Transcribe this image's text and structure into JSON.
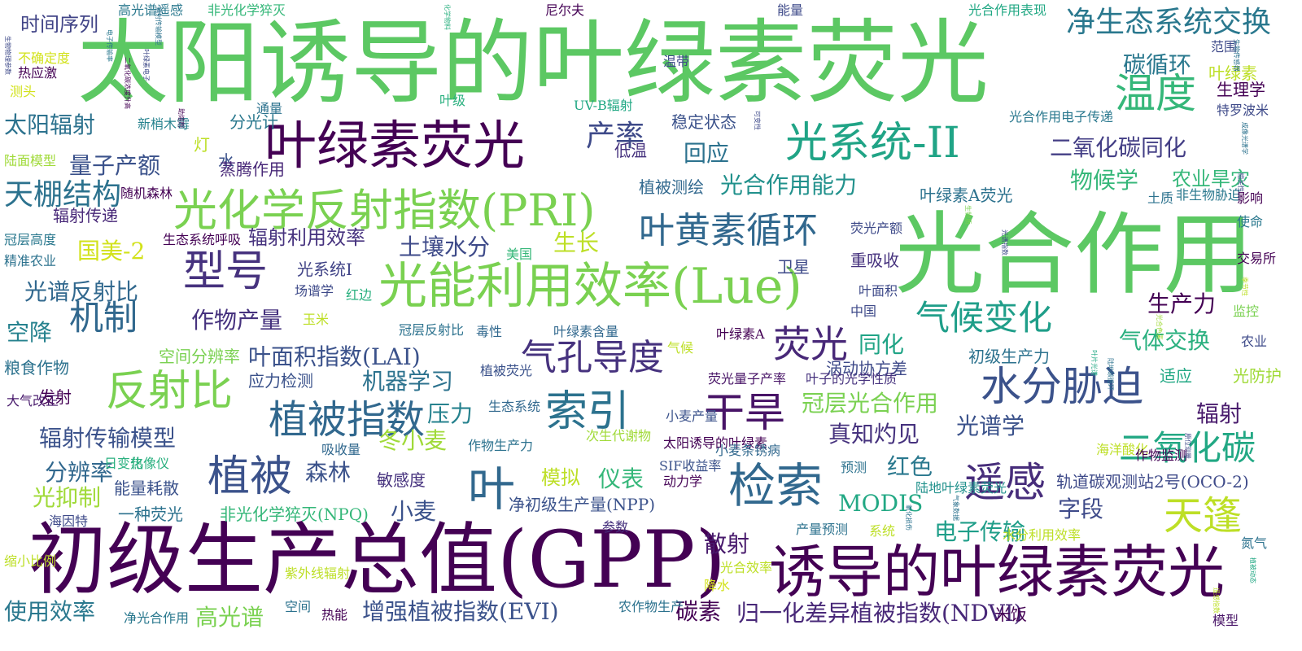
{
  "words": [
    {
      "text": "太阳诱导的叶绿素荧光",
      "color": "#5cc863"
    },
    {
      "text": "光合作用",
      "color": "#5cc863"
    },
    {
      "text": "初级生产总值(GPP)",
      "color": "#440154"
    },
    {
      "text": "诱导的叶绿素荧光",
      "color": "#440154"
    },
    {
      "text": "叶绿素荧光",
      "color": "#440154"
    },
    {
      "text": "光能利用效率(Lue)",
      "color": "#7ad151"
    },
    {
      "text": "光化学反射指数(PRI)",
      "color": "#7ad151"
    },
    {
      "text": "检索",
      "color": "#31688e"
    },
    {
      "text": "叶",
      "color": "#31688e"
    },
    {
      "text": "温度",
      "color": "#35b779"
    },
    {
      "text": "光系统-II",
      "color": "#20a486"
    },
    {
      "text": "水分胁迫",
      "color": "#3b528b"
    },
    {
      "text": "干旱",
      "color": "#481467"
    },
    {
      "text": "反射比",
      "color": "#7ad151"
    },
    {
      "text": "型号",
      "color": "#46327e"
    },
    {
      "text": "索引",
      "color": "#2c728e"
    },
    {
      "text": "植被",
      "color": "#3b528b"
    },
    {
      "text": "遥感",
      "color": "#472d7b"
    },
    {
      "text": "植被指数",
      "color": "#31688e"
    },
    {
      "text": "叶黄素循环",
      "color": "#31688e"
    },
    {
      "text": "气孔导度",
      "color": "#46327e"
    },
    {
      "text": "荧光",
      "color": "#482878"
    },
    {
      "text": "机制",
      "color": "#31688e"
    },
    {
      "text": "天篷",
      "color": "#bddf26"
    },
    {
      "text": "二氧化碳",
      "color": "#22a884"
    },
    {
      "text": "气候变化",
      "color": "#1f9e89"
    },
    {
      "text": "净生态系统交换",
      "color": "#2a788e"
    },
    {
      "text": "碳循环",
      "color": "#2a788e"
    },
    {
      "text": "产率",
      "color": "#3e4a89"
    },
    {
      "text": "二氧化碳同化",
      "color": "#433e85"
    },
    {
      "text": "物候学",
      "color": "#35b779"
    },
    {
      "text": "农业旱灾",
      "color": "#35b779"
    },
    {
      "text": "天棚结构",
      "color": "#2c728e"
    },
    {
      "text": "量子产额",
      "color": "#3b528b"
    },
    {
      "text": "太阳辐射",
      "color": "#2c728e"
    },
    {
      "text": "时间序列",
      "color": "#414487"
    },
    {
      "text": "土壤水分",
      "color": "#3e4a89"
    },
    {
      "text": "光合作用能力",
      "color": "#21918c"
    },
    {
      "text": "叶面积指数(LAI)",
      "color": "#3b528b"
    },
    {
      "text": "作物产量",
      "color": "#46327e"
    },
    {
      "text": "光谱反射比",
      "color": "#31688e"
    },
    {
      "text": "生长",
      "color": "#bddf26"
    },
    {
      "text": "国美-2",
      "color": "#d2e21b"
    },
    {
      "text": "空降",
      "color": "#26828e"
    },
    {
      "text": "辐射传输模型",
      "color": "#3b528b"
    },
    {
      "text": "辐射利用效率",
      "color": "#46327e"
    },
    {
      "text": "冠层光合作用",
      "color": "#7ad151"
    },
    {
      "text": "光谱学",
      "color": "#3b528b"
    },
    {
      "text": "生产力",
      "color": "#440154"
    },
    {
      "text": "气体交换",
      "color": "#2ab07f"
    },
    {
      "text": "辐射",
      "color": "#481a6c"
    },
    {
      "text": "字段",
      "color": "#3e4a89"
    },
    {
      "text": "真知灼见",
      "color": "#46327e"
    },
    {
      "text": "机器学习",
      "color": "#2c728e"
    },
    {
      "text": "同化",
      "color": "#20a486"
    },
    {
      "text": "电子传输",
      "color": "#1f9e89"
    },
    {
      "text": "使用效率",
      "color": "#2a788e"
    },
    {
      "text": "增强植被指数(EVI)",
      "color": "#3b528b"
    },
    {
      "text": "归一化差异植被指数(NDVI)",
      "color": "#482878"
    },
    {
      "text": "碳素",
      "color": "#440154"
    },
    {
      "text": "高光谱",
      "color": "#7ad151"
    },
    {
      "text": "散射",
      "color": "#481a6c"
    },
    {
      "text": "森林",
      "color": "#3b528b"
    },
    {
      "text": "冬小麦",
      "color": "#a0da39"
    },
    {
      "text": "小麦",
      "color": "#3b528b"
    },
    {
      "text": "红色",
      "color": "#2a788e"
    },
    {
      "text": "分辨率",
      "color": "#31688e"
    },
    {
      "text": "光抑制",
      "color": "#a0da39"
    },
    {
      "text": "仪表",
      "color": "#35b779"
    },
    {
      "text": "模拟",
      "color": "#bddf26"
    },
    {
      "text": "MODIS",
      "color": "#22a884"
    },
    {
      "text": "轨道碳观测站2号(OCO-2)",
      "color": "#3e4a89"
    },
    {
      "text": "净初级生产量(NPP)",
      "color": "#3b528b"
    },
    {
      "text": "压力",
      "color": "#26828e"
    },
    {
      "text": "涡动协方差",
      "color": "#3e4a89"
    },
    {
      "text": "初级生产力",
      "color": "#2c728e"
    },
    {
      "text": "能量耗散",
      "color": "#3b528b"
    },
    {
      "text": "一种荧光",
      "color": "#2c728e"
    },
    {
      "text": "非光化学猝灭(NPQ)",
      "color": "#35b779"
    },
    {
      "text": "敏感度",
      "color": "#46327e"
    },
    {
      "text": "叶绿素A荧光",
      "color": "#2c728e"
    },
    {
      "text": "植被测绘",
      "color": "#31688e"
    },
    {
      "text": "回应",
      "color": "#2c728e"
    },
    {
      "text": "稳定状态",
      "color": "#3b528b"
    },
    {
      "text": "低温",
      "color": "#46327e"
    },
    {
      "text": "光系统I",
      "color": "#414487"
    },
    {
      "text": "卫星",
      "color": "#3e4a89"
    },
    {
      "text": "重吸收",
      "color": "#46327e"
    },
    {
      "text": "冠层高度",
      "color": "#2a788e"
    },
    {
      "text": "精准农业",
      "color": "#2c728e"
    },
    {
      "text": "生态系统呼吸",
      "color": "#440154"
    },
    {
      "text": "辐射传递",
      "color": "#482878"
    },
    {
      "text": "随机森林",
      "color": "#440154"
    },
    {
      "text": "应力检测",
      "color": "#3b528b"
    },
    {
      "text": "粮食作物",
      "color": "#2c728e"
    },
    {
      "text": "发射",
      "color": "#440154"
    },
    {
      "text": "叶绿素",
      "color": "#bddf26"
    },
    {
      "text": "生理学",
      "color": "#440154"
    },
    {
      "text": "光合作用电子传递",
      "color": "#2a788e"
    },
    {
      "text": "UV-B辐射",
      "color": "#22a884"
    },
    {
      "text": "陆面模型",
      "color": "#a0da39"
    },
    {
      "text": "灯",
      "color": "#bddf26"
    },
    {
      "text": "水",
      "color": "#3b528b"
    },
    {
      "text": "分光计",
      "color": "#2a788e"
    },
    {
      "text": "新梢木霉",
      "color": "#26828e"
    },
    {
      "text": "蒸腾作用",
      "color": "#482878"
    },
    {
      "text": "测头",
      "color": "#d2e21b"
    },
    {
      "text": "不确定度",
      "color": "#d2e21b"
    },
    {
      "text": "热应激",
      "color": "#440154"
    },
    {
      "text": "能量",
      "color": "#3e4a89"
    },
    {
      "text": "高光谱遥感",
      "color": "#2a788e"
    },
    {
      "text": "非光化学猝灭",
      "color": "#35b779"
    },
    {
      "text": "尼尔夫",
      "color": "#440154"
    },
    {
      "text": "光合作用表现",
      "color": "#22a884"
    },
    {
      "text": "范围",
      "color": "#3e4a89"
    },
    {
      "text": "温带",
      "color": "#3e4a89"
    },
    {
      "text": "叶级",
      "color": "#2ab07f"
    },
    {
      "text": "通量",
      "color": "#2c728e"
    },
    {
      "text": "特罗波米",
      "color": "#3e4a89"
    },
    {
      "text": "非生物胁迫",
      "color": "#2a788e"
    },
    {
      "text": "土质",
      "color": "#2c728e"
    },
    {
      "text": "影响",
      "color": "#440154"
    },
    {
      "text": "使命",
      "color": "#2a788e"
    },
    {
      "text": "交易所",
      "color": "#440154"
    },
    {
      "text": "荧光产额",
      "color": "#3e4a89"
    },
    {
      "text": "中国",
      "color": "#3e4a89"
    },
    {
      "text": "叶面积",
      "color": "#3e4a89"
    },
    {
      "text": "监控",
      "color": "#7ad151"
    },
    {
      "text": "农业",
      "color": "#3e4a89"
    },
    {
      "text": "适应",
      "color": "#22a884"
    },
    {
      "text": "光防护",
      "color": "#a0da39"
    },
    {
      "text": "空间分辨率",
      "color": "#7ad151"
    },
    {
      "text": "气候",
      "color": "#bddf26"
    },
    {
      "text": "叶绿素A",
      "color": "#440154"
    },
    {
      "text": "植被荧光",
      "color": "#3b528b"
    },
    {
      "text": "荧光量子产率",
      "color": "#481467"
    },
    {
      "text": "叶子的光学性质",
      "color": "#46327e"
    },
    {
      "text": "叶绿素含量",
      "color": "#31688e"
    },
    {
      "text": "毒性",
      "color": "#31688e"
    },
    {
      "text": "冠层反射比",
      "color": "#2c728e"
    },
    {
      "text": "玉米",
      "color": "#bddf26"
    },
    {
      "text": "场谱学",
      "color": "#3e4a89"
    },
    {
      "text": "红边",
      "color": "#2ab07f"
    },
    {
      "text": "美国",
      "color": "#35b779"
    },
    {
      "text": "大气改正",
      "color": "#481a6c"
    },
    {
      "text": "生态系统",
      "color": "#31688e"
    },
    {
      "text": "小麦产量",
      "color": "#3b528b"
    },
    {
      "text": "太阳诱导的叶绿素",
      "color": "#440154"
    },
    {
      "text": "小麦条锈病",
      "color": "#31688e"
    },
    {
      "text": "海洋酸化",
      "color": "#bddf26"
    },
    {
      "text": "作物监测",
      "color": "#440154"
    },
    {
      "text": "热像仪",
      "color": "#2ab07f"
    },
    {
      "text": "吸收量",
      "color": "#31688e"
    },
    {
      "text": "作物生产力",
      "color": "#2c728e"
    },
    {
      "text": "日变化",
      "color": "#2ab07f"
    },
    {
      "text": "SIF收益率",
      "color": "#3b528b"
    },
    {
      "text": "动力学",
      "color": "#440154"
    },
    {
      "text": "预测",
      "color": "#2c728e"
    },
    {
      "text": "陆地叶绿素荧光",
      "color": "#21918c"
    },
    {
      "text": "水分利用效率",
      "color": "#bddf26"
    },
    {
      "text": "参数",
      "color": "#46327e"
    },
    {
      "text": "系统",
      "color": "#bddf26"
    },
    {
      "text": "产量预测",
      "color": "#2c728e"
    },
    {
      "text": "海因特",
      "color": "#3e4a89"
    },
    {
      "text": "光合效率",
      "color": "#bddf26"
    },
    {
      "text": "紫外线辐射",
      "color": "#bddf26"
    },
    {
      "text": "降水",
      "color": "#d2e21b"
    },
    {
      "text": "空间",
      "color": "#2c728e"
    },
    {
      "text": "热能",
      "color": "#440154"
    },
    {
      "text": "农作物生产",
      "color": "#2c728e"
    },
    {
      "text": "净光合作用",
      "color": "#2a788e"
    },
    {
      "text": "米饭",
      "color": "#440154"
    },
    {
      "text": "模型",
      "color": "#481467"
    },
    {
      "text": "氮气",
      "color": "#2c728e"
    },
    {
      "text": "缩小比例",
      "color": "#bddf26"
    },
    {
      "text": "次生代谢物",
      "color": "#a0da39"
    },
    {
      "text": "辐射传输模型",
      "color": "#2c728e"
    },
    {
      "text": "电子传输率",
      "color": "#2a788e"
    },
    {
      "text": "化学物料",
      "color": "#2ab07f"
    },
    {
      "text": "叶绿素电子",
      "color": "#3e4a89"
    },
    {
      "text": "二氧化碳浓度升高",
      "color": "#440154"
    },
    {
      "text": "生物物理参数",
      "color": "#3e4a89"
    },
    {
      "text": "生物传感器",
      "color": "#2c728e"
    },
    {
      "text": "成像光谱学",
      "color": "#2c728e"
    },
    {
      "text": "助熔剂",
      "color": "#440154"
    },
    {
      "text": "可变性",
      "color": "#3e4a89"
    },
    {
      "text": "相关性",
      "color": "#3e4a89"
    },
    {
      "text": "生物质",
      "color": "#7ad151"
    },
    {
      "text": "季节性",
      "color": "#bddf26"
    },
    {
      "text": "光合色素",
      "color": "#a0da39"
    },
    {
      "text": "氧化损伤",
      "color": "#2c728e"
    },
    {
      "text": "气象数据",
      "color": "#2c728e"
    },
    {
      "text": "原位测量",
      "color": "#3e4a89"
    },
    {
      "text": "植被动态",
      "color": "#22a884"
    },
    {
      "text": "陆地碳循环",
      "color": "#2c728e"
    },
    {
      "text": "光谱指数",
      "color": "#3e4a89"
    },
    {
      "text": "叶片光谱",
      "color": "#22a884"
    },
    {
      "text": "遥感指数",
      "color": "#bddf26"
    },
    {
      "text": "森林健康",
      "color": "#3e4a89"
    }
  ]
}
